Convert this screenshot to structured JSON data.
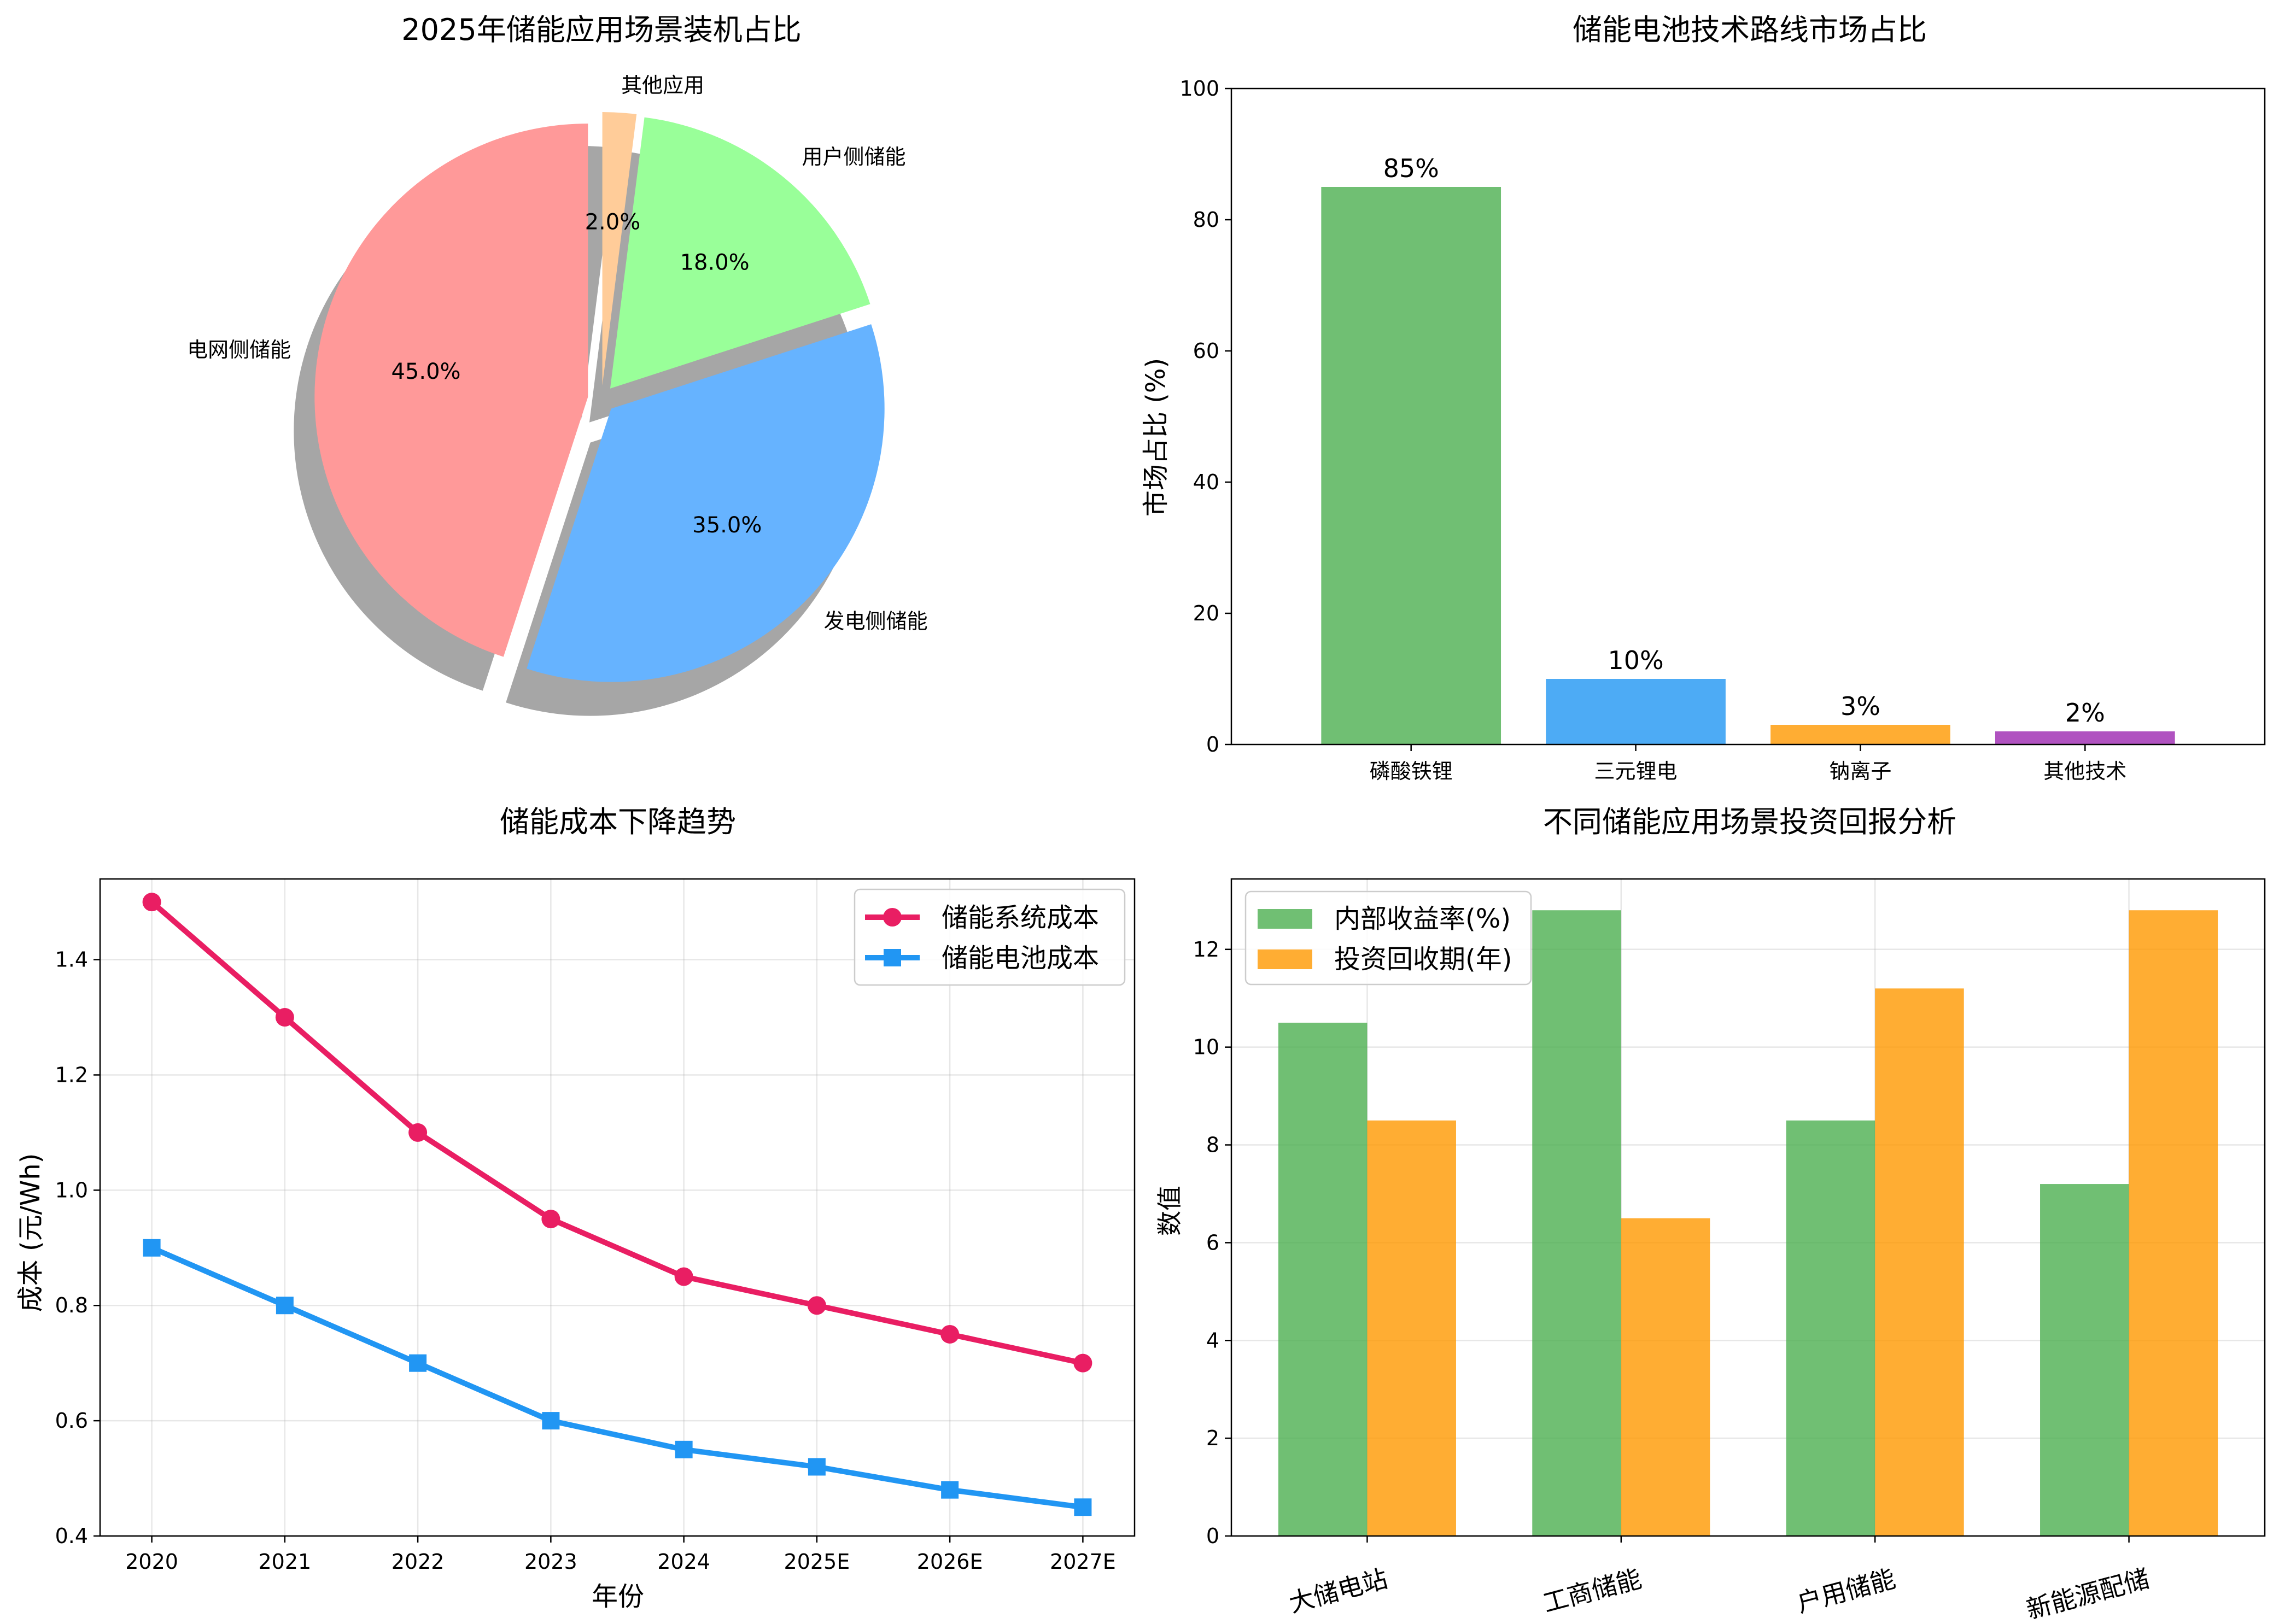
{
  "chart_data": [
    {
      "type": "pie",
      "title": "2025年储能应用场景装机占比",
      "labels": [
        "电网侧储能",
        "发电侧储能",
        "用户侧储能",
        "其他应用"
      ],
      "values": [
        45.0,
        35.0,
        18.0,
        2.0
      ],
      "percent_labels": [
        "45.0%",
        "35.0%",
        "18.0%",
        "2.0%"
      ],
      "colors": [
        "#ff9999",
        "#66b3ff",
        "#99ff99",
        "#ffcc99"
      ],
      "explode": [
        0.05,
        0.05,
        0.05,
        0.05
      ],
      "start_angle_deg": 90,
      "counterclockwise": true,
      "shadow": true
    },
    {
      "type": "bar",
      "title": "储能电池技术路线市场占比",
      "categories": [
        "磷酸铁锂",
        "三元锂电",
        "钠离子",
        "其他技术"
      ],
      "values": [
        85,
        10,
        3,
        2
      ],
      "value_labels": [
        "85%",
        "10%",
        "3%",
        "2%"
      ],
      "colors": [
        "#4caf50",
        "#2196f3",
        "#ff9800",
        "#9c27b0"
      ],
      "xlabel": "",
      "ylabel": "市场占比 (%)",
      "ylim": [
        0,
        100
      ],
      "yticks": [
        0,
        20,
        40,
        60,
        80,
        100
      ],
      "grid": false
    },
    {
      "type": "line",
      "title": "储能成本下降趋势",
      "x": [
        "2020",
        "2021",
        "2022",
        "2023",
        "2024",
        "2025E",
        "2026E",
        "2027E"
      ],
      "series": [
        {
          "name": "储能系统成本",
          "values": [
            1.5,
            1.3,
            1.1,
            0.95,
            0.85,
            0.8,
            0.75,
            0.7
          ],
          "color": "#e91e63",
          "marker": "circle"
        },
        {
          "name": "储能电池成本",
          "values": [
            0.9,
            0.8,
            0.7,
            0.6,
            0.55,
            0.52,
            0.48,
            0.45
          ],
          "color": "#2196f3",
          "marker": "square"
        }
      ],
      "xlabel": "年份",
      "ylabel": "成本 (元/Wh)",
      "ylim": [
        0.4,
        1.54
      ],
      "yticks": [
        "0.4",
        "0.6",
        "0.8",
        "1.0",
        "1.2",
        "1.4"
      ],
      "grid": true,
      "legend_position": "top-right"
    },
    {
      "type": "bar",
      "title": "不同储能应用场景投资回报分析",
      "categories": [
        "大储电站",
        "工商储能",
        "户用储能",
        "新能源配储"
      ],
      "series": [
        {
          "name": "内部收益率(%)",
          "values": [
            10.5,
            12.8,
            8.5,
            7.2
          ],
          "color": "#4caf50"
        },
        {
          "name": "投资回收期(年)",
          "values": [
            8.5,
            6.5,
            11.2,
            12.8
          ],
          "color": "#ff9800"
        }
      ],
      "xlabel": "",
      "ylabel": "数值",
      "ylim": [
        0,
        13.44
      ],
      "yticks": [
        0,
        2,
        4,
        6,
        8,
        10,
        12
      ],
      "grid": true,
      "legend_position": "top-left"
    }
  ]
}
